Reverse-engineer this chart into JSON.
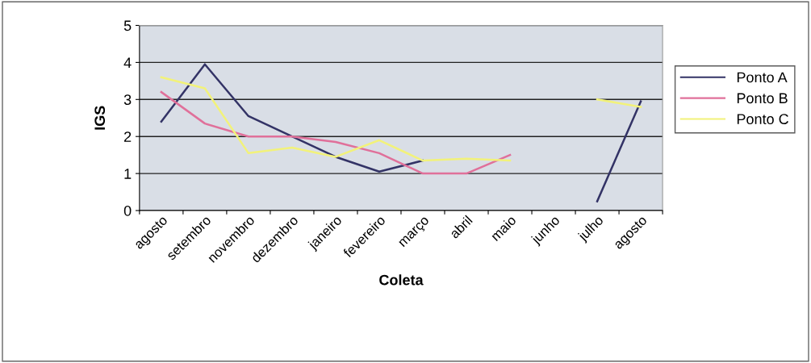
{
  "chart_data": {
    "type": "line",
    "xlabel": "Coleta",
    "ylabel": "IGS",
    "categories": [
      "agosto",
      "setembro",
      "novembro",
      "dezembro",
      "janeiro",
      "fevereiro",
      "março",
      "abril",
      "maio",
      "junho",
      "julho",
      "agosto"
    ],
    "series": [
      {
        "name": "Ponto A",
        "color": "#333366",
        "values": [
          2.4,
          3.95,
          2.55,
          2.0,
          1.45,
          1.05,
          1.35,
          null,
          null,
          null,
          0.25,
          2.95
        ]
      },
      {
        "name": "Ponto B",
        "color": "#e0709a",
        "values": [
          3.2,
          2.35,
          2.0,
          2.0,
          1.85,
          1.55,
          1.0,
          1.0,
          1.5,
          null,
          null,
          null
        ]
      },
      {
        "name": "Ponto C",
        "color": "#f2f27a",
        "values": [
          3.6,
          3.3,
          1.55,
          1.7,
          1.45,
          1.9,
          1.35,
          1.4,
          1.35,
          null,
          3.0,
          2.8
        ]
      }
    ],
    "ylim": [
      0,
      5
    ],
    "yticks": [
      0,
      1,
      2,
      3,
      4,
      5
    ],
    "grid": "y",
    "legend": "right",
    "marker": "none",
    "line_style": "solid"
  }
}
